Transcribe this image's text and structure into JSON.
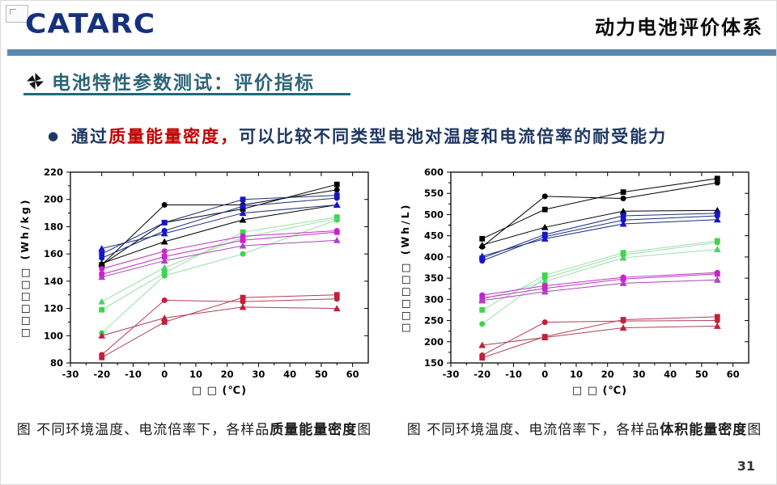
{
  "slide": {
    "logo_text": "CATARC",
    "header_title": "动力电池评价体系",
    "section_title": "电池特性参数测试：评价指标",
    "bullet": {
      "marker": "●",
      "prefix": "通过",
      "highlight": "质量能量密度，",
      "rest": "可以比较不同类型电池对温度和电流倍率的耐受能力"
    },
    "captions": {
      "left_prefix": "图 不同环境温度、电流倍率下，各样品",
      "left_bold": "质量能量密度",
      "left_suffix": "图",
      "right_prefix": "图 不同环境温度、电流倍率下，各样品",
      "right_bold": "体积能量密度",
      "right_suffix": "图"
    },
    "page_number": "31",
    "colors": {
      "logo_blue": "#15317e",
      "header_bar": "#5b87b0",
      "section_title": "#2d6476",
      "section_underline": "#1e6a7a",
      "bullet_text": "#1f3864",
      "highlight_red": "#c00000"
    }
  },
  "chart_data": [
    {
      "type": "line",
      "title": "",
      "xlabel": "□ □ (℃)",
      "ylabel": "□□□□□□ (Wh/kg)",
      "xlim": [
        -30,
        65
      ],
      "ylim": [
        80,
        220
      ],
      "xticks": [
        -30,
        -20,
        -10,
        0,
        10,
        20,
        30,
        40,
        50,
        60
      ],
      "yticks": [
        80,
        100,
        120,
        140,
        160,
        180,
        200,
        220
      ],
      "x_minor_step": 5,
      "y_minor_step": 10,
      "x": [
        -20,
        0,
        25,
        55
      ],
      "series": [
        {
          "name": "black-square",
          "marker": "square",
          "color": "#000000",
          "line": "#000000",
          "values": [
            152,
            183,
            193,
            211
          ]
        },
        {
          "name": "black-circle",
          "marker": "circle",
          "color": "#000000",
          "line": "#000000",
          "values": [
            152,
            196,
            196,
            207
          ]
        },
        {
          "name": "black-triangle",
          "marker": "triangle",
          "color": "#000000",
          "line": "#000000",
          "values": [
            153,
            169,
            185,
            196
          ]
        },
        {
          "name": "blue-square",
          "marker": "square",
          "color": "#1616c8",
          "line": "#1d2f7c",
          "values": [
            160,
            183,
            200,
            203
          ]
        },
        {
          "name": "blue-circle",
          "marker": "circle",
          "color": "#1616c8",
          "line": "#1d2f7c",
          "values": [
            157,
            177,
            195,
            201
          ]
        },
        {
          "name": "blue-triangle",
          "marker": "triangle",
          "color": "#1616c8",
          "line": "#1d2f7c",
          "values": [
            164,
            175,
            190,
            196
          ]
        },
        {
          "name": "green-square",
          "marker": "square",
          "color": "#3fd44f",
          "line": "#9adfa8",
          "values": [
            119,
            146,
            176,
            187
          ]
        },
        {
          "name": "green-circle",
          "marker": "circle",
          "color": "#3fd44f",
          "line": "#9adfa8",
          "values": [
            102,
            144,
            160,
            185
          ]
        },
        {
          "name": "green-triangle",
          "marker": "triangle",
          "color": "#4ecf6a",
          "line": "#9adfa8",
          "values": [
            125,
            150,
            172,
            186
          ]
        },
        {
          "name": "magenta-circle",
          "marker": "circle",
          "color": "#cc22cc",
          "line": "#c032c0",
          "values": [
            149,
            162,
            173,
            177
          ]
        },
        {
          "name": "magenta-square",
          "marker": "square",
          "color": "#cc22cc",
          "line": "#c032c0",
          "values": [
            145,
            158,
            170,
            176
          ]
        },
        {
          "name": "magenta-triangle",
          "marker": "triangle",
          "color": "#b03ec8",
          "line": "#a846b4",
          "values": [
            143,
            155,
            166,
            170
          ]
        },
        {
          "name": "red-square",
          "marker": "square",
          "color": "#c41f3c",
          "line": "#b04055",
          "values": [
            84,
            110,
            128,
            130
          ]
        },
        {
          "name": "red-circle",
          "marker": "circle",
          "color": "#c41f3c",
          "line": "#b04055",
          "values": [
            86,
            126,
            125,
            127
          ]
        },
        {
          "name": "red-triangle",
          "marker": "triangle",
          "color": "#c41f3c",
          "line": "#b04055",
          "values": [
            100,
            113,
            121,
            120
          ]
        }
      ]
    },
    {
      "type": "line",
      "title": "",
      "xlabel": "□ □ (℃)",
      "ylabel": "□□□□□□ (Wh/L)",
      "xlim": [
        -30,
        65
      ],
      "ylim": [
        150,
        600
      ],
      "xticks": [
        -30,
        -20,
        -10,
        0,
        10,
        20,
        30,
        40,
        50,
        60
      ],
      "yticks": [
        150,
        200,
        250,
        300,
        350,
        400,
        450,
        500,
        550,
        600
      ],
      "x_minor_step": 5,
      "y_minor_step": 25,
      "x": [
        -20,
        0,
        25,
        55
      ],
      "series": [
        {
          "name": "black-square",
          "marker": "square",
          "color": "#000000",
          "line": "#000000",
          "values": [
            443,
            512,
            553,
            585
          ]
        },
        {
          "name": "black-circle",
          "marker": "circle",
          "color": "#000000",
          "line": "#000000",
          "values": [
            424,
            543,
            538,
            575
          ]
        },
        {
          "name": "black-triangle",
          "marker": "triangle",
          "color": "#000000",
          "line": "#000000",
          "values": [
            428,
            470,
            508,
            510
          ]
        },
        {
          "name": "blue-square",
          "marker": "square",
          "color": "#1616c8",
          "line": "#1d2f7c",
          "values": [
            397,
            453,
            497,
            503
          ]
        },
        {
          "name": "blue-circle",
          "marker": "circle",
          "color": "#1616c8",
          "line": "#1d2f7c",
          "values": [
            391,
            448,
            487,
            497
          ]
        },
        {
          "name": "blue-triangle",
          "marker": "triangle",
          "color": "#1616c8",
          "line": "#1d2f7c",
          "values": [
            402,
            443,
            478,
            488
          ]
        },
        {
          "name": "green-square",
          "marker": "square",
          "color": "#3fd44f",
          "line": "#9adfa8",
          "values": [
            275,
            357,
            410,
            438
          ]
        },
        {
          "name": "green-circle",
          "marker": "circle",
          "color": "#3fd44f",
          "line": "#9adfa8",
          "values": [
            242,
            350,
            405,
            434
          ]
        },
        {
          "name": "green-triangle",
          "marker": "triangle",
          "color": "#4ecf6a",
          "line": "#9adfa8",
          "values": [
            300,
            342,
            398,
            418
          ]
        },
        {
          "name": "magenta-circle",
          "marker": "circle",
          "color": "#cc22cc",
          "line": "#c032c0",
          "values": [
            310,
            332,
            352,
            363
          ]
        },
        {
          "name": "magenta-square",
          "marker": "square",
          "color": "#cc22cc",
          "line": "#c032c0",
          "values": [
            303,
            326,
            348,
            360
          ]
        },
        {
          "name": "magenta-triangle",
          "marker": "triangle",
          "color": "#b03ec8",
          "line": "#a846b4",
          "values": [
            297,
            318,
            338,
            346
          ]
        },
        {
          "name": "red-square",
          "marker": "square",
          "color": "#c41f3c",
          "line": "#b04055",
          "values": [
            162,
            212,
            252,
            259
          ]
        },
        {
          "name": "red-circle",
          "marker": "circle",
          "color": "#c41f3c",
          "line": "#b04055",
          "values": [
            168,
            246,
            249,
            250
          ]
        },
        {
          "name": "red-triangle",
          "marker": "triangle",
          "color": "#c41f3c",
          "line": "#b04055",
          "values": [
            192,
            210,
            233,
            237
          ]
        }
      ]
    }
  ]
}
